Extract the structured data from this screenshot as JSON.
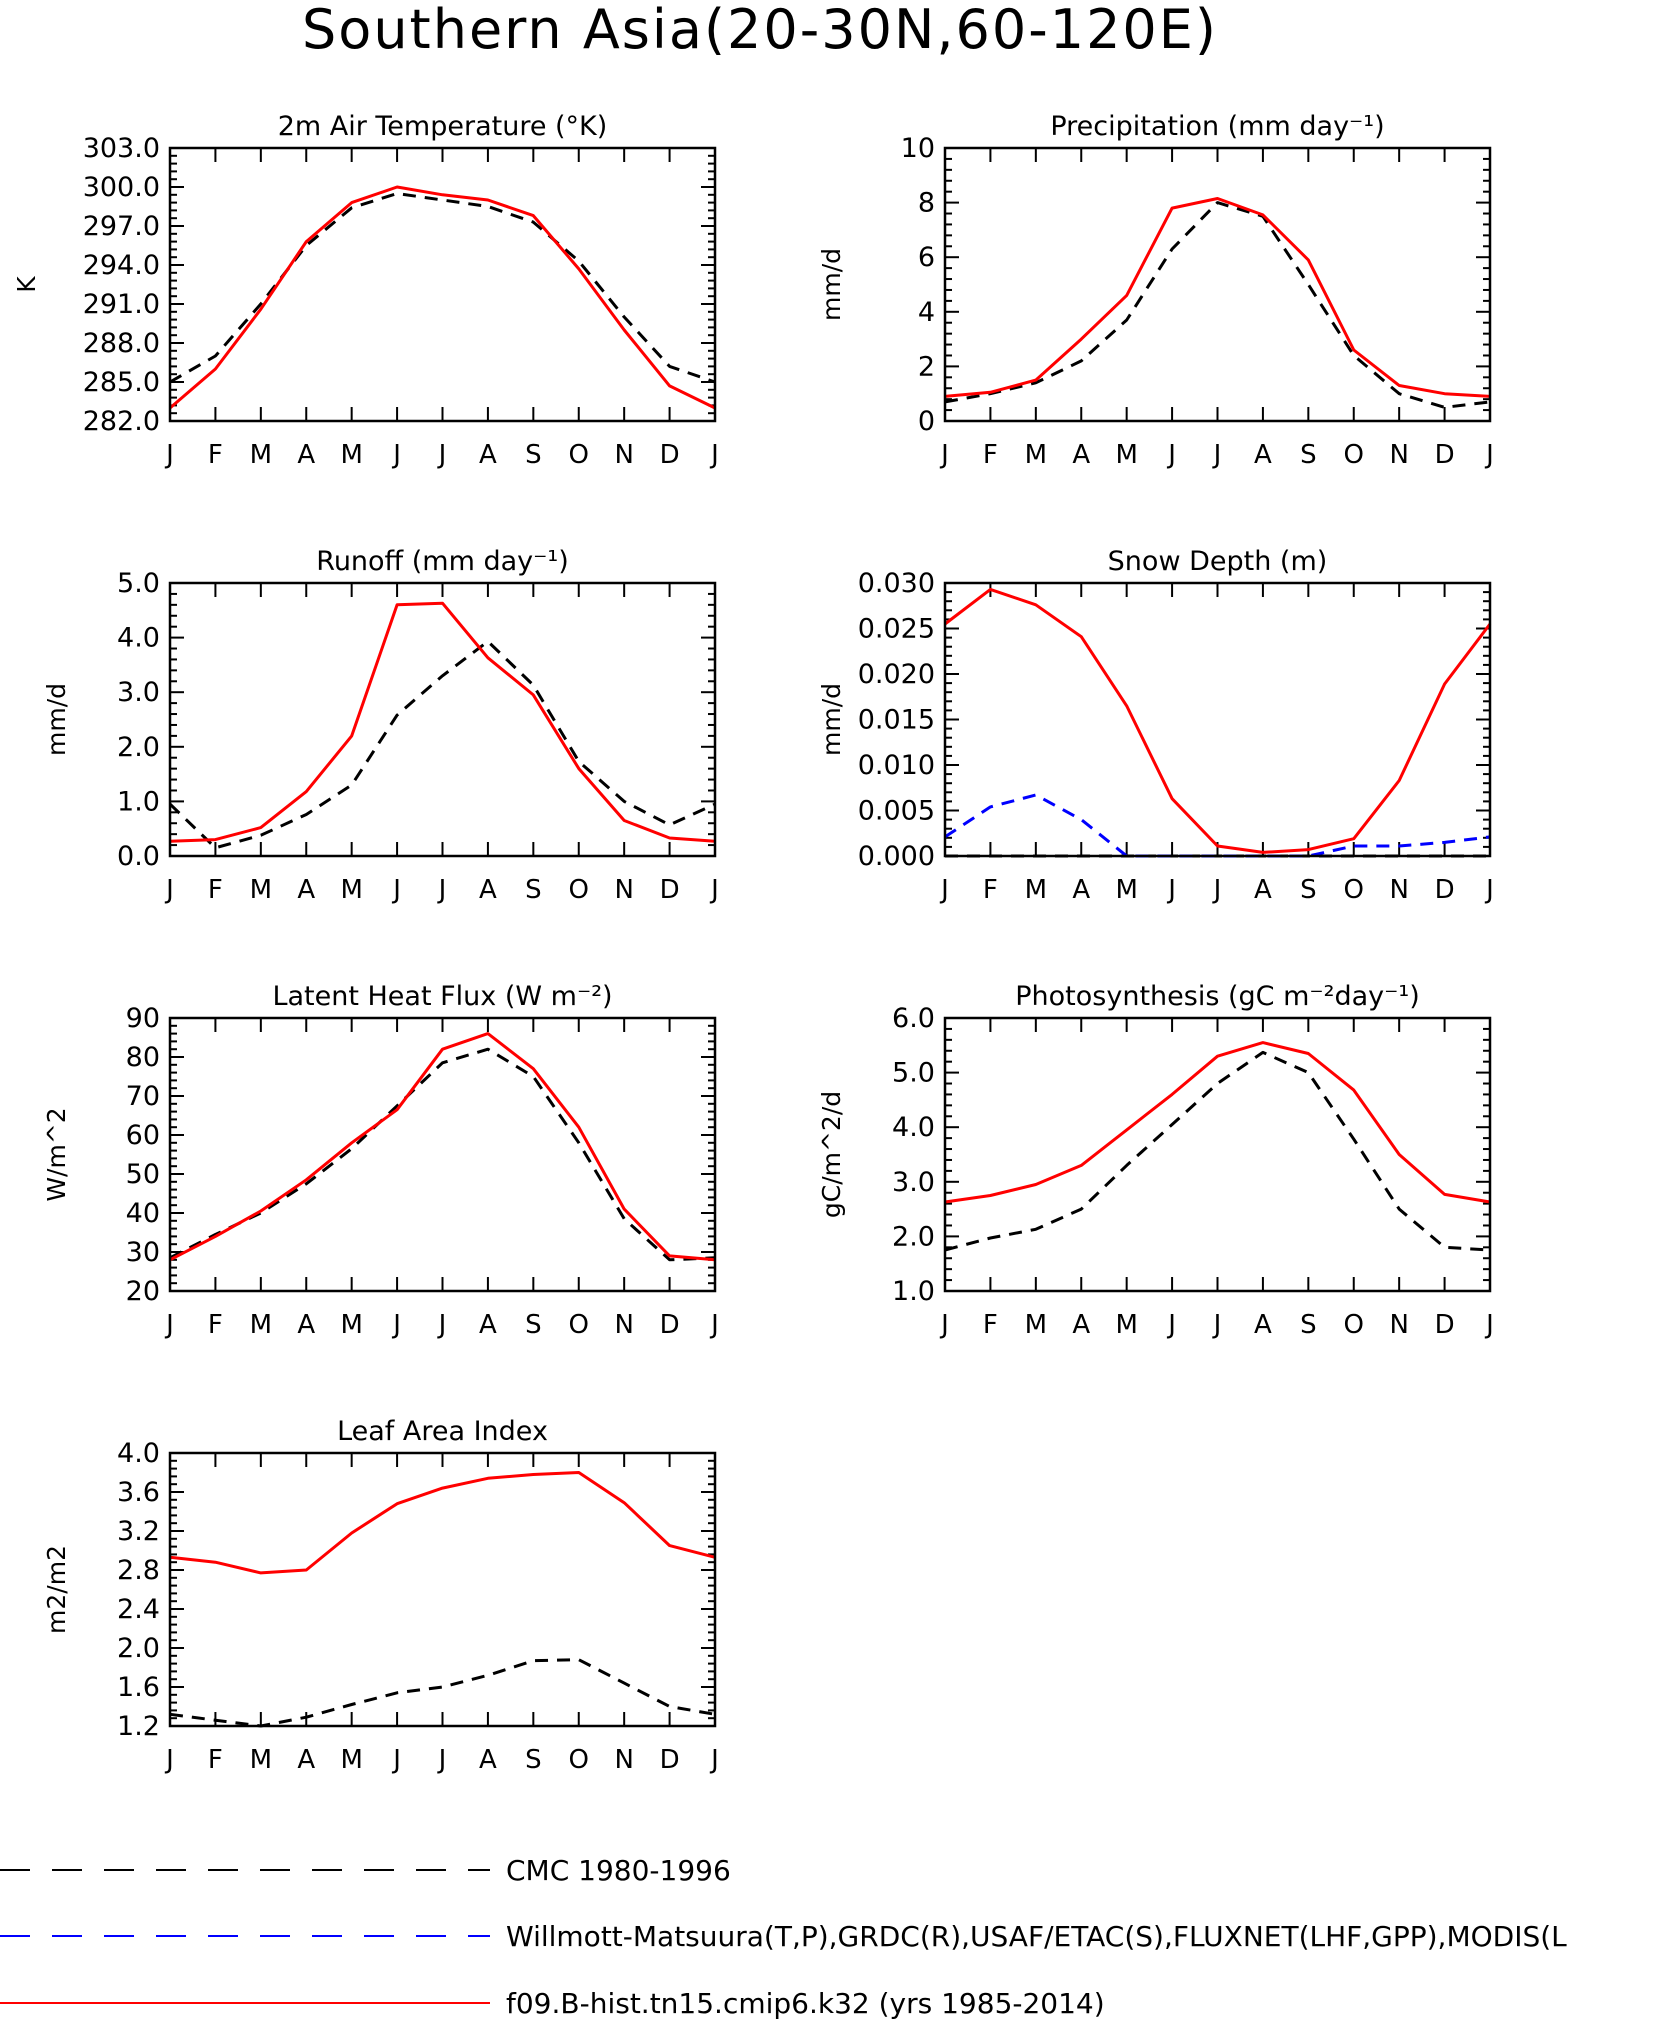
{
  "title": "Southern Asia(20-30N,60-120E)",
  "months": [
    "J",
    "F",
    "M",
    "A",
    "M",
    "J",
    "J",
    "A",
    "S",
    "O",
    "N",
    "D",
    "J"
  ],
  "colors": {
    "obs1": "#000000",
    "obs2": "#0000ff",
    "model": "#ff0000"
  },
  "legend": [
    {
      "key": "obs1",
      "label": "CMC 1980-1996",
      "dash": "dashed",
      "color": "#000000"
    },
    {
      "key": "obs2",
      "label": "Willmott-Matsuura(T,P),GRDC(R),USAF/ETAC(S),FLUXNET(LHF,GPP),MODIS(L",
      "dash": "dashed",
      "color": "#0000ff"
    },
    {
      "key": "model",
      "label": "f09.B-hist.tn15.cmip6.k32 (yrs 1985-2014)",
      "dash": "solid",
      "color": "#ff0000"
    }
  ],
  "chart_data": [
    {
      "type": "line",
      "title": "2m Air Temperature (°K)",
      "ylabel": "K",
      "ylim": [
        282.0,
        303.0
      ],
      "yticks": [
        "282.0",
        "285.0",
        "288.0",
        "291.0",
        "294.0",
        "297.0",
        "300.0",
        "303.0"
      ],
      "x": [
        "J",
        "F",
        "M",
        "A",
        "M",
        "J",
        "J",
        "A",
        "S",
        "O",
        "N",
        "D",
        "J"
      ],
      "series": [
        {
          "key": "obs1",
          "values": [
            285.0,
            287.0,
            291.0,
            295.5,
            298.4,
            299.5,
            299.0,
            298.5,
            297.3,
            294.3,
            290.0,
            286.2,
            285.0
          ]
        },
        {
          "key": "model",
          "values": [
            283.0,
            286.0,
            290.6,
            295.8,
            298.8,
            300.0,
            299.4,
            299.0,
            297.8,
            293.7,
            289.0,
            284.7,
            283.0
          ]
        }
      ]
    },
    {
      "type": "line",
      "title": "Precipitation (mm day⁻¹)",
      "ylabel": "mm/d",
      "ylim": [
        0,
        10
      ],
      "yticks": [
        "0",
        "2",
        "4",
        "6",
        "8",
        "10"
      ],
      "x": [
        "J",
        "F",
        "M",
        "A",
        "M",
        "J",
        "J",
        "A",
        "S",
        "O",
        "N",
        "D",
        "J"
      ],
      "series": [
        {
          "key": "obs1",
          "values": [
            0.7,
            1.0,
            1.4,
            2.2,
            3.7,
            6.3,
            8.0,
            7.5,
            5.0,
            2.4,
            1.0,
            0.5,
            0.7
          ]
        },
        {
          "key": "model",
          "values": [
            0.9,
            1.05,
            1.5,
            3.0,
            4.6,
            7.8,
            8.15,
            7.55,
            5.9,
            2.6,
            1.3,
            1.0,
            0.9
          ]
        }
      ]
    },
    {
      "type": "line",
      "title": "Runoff (mm day⁻¹)",
      "ylabel": "mm/d",
      "ylim": [
        0,
        5.0
      ],
      "yticks": [
        "0.0",
        "1.0",
        "2.0",
        "3.0",
        "4.0",
        "5.0"
      ],
      "x": [
        "J",
        "F",
        "M",
        "A",
        "M",
        "J",
        "J",
        "A",
        "S",
        "O",
        "N",
        "D",
        "J"
      ],
      "series": [
        {
          "key": "obs1",
          "values": [
            0.95,
            0.15,
            0.38,
            0.76,
            1.3,
            2.58,
            3.3,
            3.93,
            3.13,
            1.73,
            1.0,
            0.57,
            0.95
          ]
        },
        {
          "key": "model",
          "values": [
            0.27,
            0.3,
            0.52,
            1.18,
            2.2,
            4.6,
            4.63,
            3.63,
            2.95,
            1.6,
            0.65,
            0.33,
            0.27
          ]
        }
      ]
    },
    {
      "type": "line",
      "title": "Snow Depth (m)",
      "ylabel": "mm/d",
      "ylim": [
        0,
        0.03
      ],
      "yticks": [
        "0.000",
        "0.005",
        "0.010",
        "0.015",
        "0.020",
        "0.025",
        "0.030"
      ],
      "x": [
        "J",
        "F",
        "M",
        "A",
        "M",
        "J",
        "J",
        "A",
        "S",
        "O",
        "N",
        "D",
        "J"
      ],
      "series": [
        {
          "key": "obs1",
          "values": [
            0,
            0,
            0,
            0,
            0,
            0,
            0,
            0,
            0,
            0,
            0,
            0,
            0
          ]
        },
        {
          "key": "obs2",
          "values": [
            0.0021,
            0.0054,
            0.0067,
            0.004,
            0,
            0,
            0,
            0,
            0,
            0.0011,
            0.0011,
            0.0015,
            0.0021
          ]
        },
        {
          "key": "model",
          "values": [
            0.0255,
            0.0293,
            0.0276,
            0.0241,
            0.0165,
            0.0063,
            0.0011,
            0.0004,
            0.0007,
            0.0019,
            0.0083,
            0.0189,
            0.0255
          ]
        }
      ]
    },
    {
      "type": "line",
      "title": "Latent Heat Flux (W m⁻²)",
      "ylabel": "W/m^2",
      "ylim": [
        20,
        90
      ],
      "yticks": [
        "20",
        "30",
        "40",
        "50",
        "60",
        "70",
        "80",
        "90"
      ],
      "x": [
        "J",
        "F",
        "M",
        "A",
        "M",
        "J",
        "J",
        "A",
        "S",
        "O",
        "N",
        "D",
        "J"
      ],
      "series": [
        {
          "key": "obs1",
          "values": [
            28.5,
            34.5,
            40.0,
            47.5,
            56.5,
            67.5,
            78.5,
            82.0,
            75.0,
            58.0,
            38.5,
            28.0,
            28.5
          ]
        },
        {
          "key": "model",
          "values": [
            28.0,
            34.0,
            40.5,
            48.5,
            58.0,
            66.5,
            82.0,
            86.0,
            77.0,
            62.0,
            41.0,
            29.0,
            28.0
          ]
        }
      ]
    },
    {
      "type": "line",
      "title": "Photosynthesis (gC m⁻²day⁻¹)",
      "ylabel": "gC/m^2/d",
      "ylim": [
        1.0,
        6.0
      ],
      "yticks": [
        "1.0",
        "2.0",
        "3.0",
        "4.0",
        "5.0",
        "6.0"
      ],
      "x": [
        "J",
        "F",
        "M",
        "A",
        "M",
        "J",
        "J",
        "A",
        "S",
        "O",
        "N",
        "D",
        "J"
      ],
      "series": [
        {
          "key": "obs1",
          "values": [
            1.75,
            1.97,
            2.13,
            2.5,
            3.3,
            4.05,
            4.8,
            5.37,
            5.0,
            3.78,
            2.5,
            1.8,
            1.75
          ]
        },
        {
          "key": "model",
          "values": [
            2.63,
            2.75,
            2.95,
            3.3,
            3.95,
            4.6,
            5.3,
            5.55,
            5.35,
            4.68,
            3.5,
            2.77,
            2.63
          ]
        }
      ]
    },
    {
      "type": "line",
      "title": "Leaf Area Index",
      "ylabel": "m2/m2",
      "ylim": [
        1.2,
        4.0
      ],
      "yticks": [
        "1.2",
        "1.6",
        "2.0",
        "2.4",
        "2.8",
        "3.2",
        "3.6",
        "4.0"
      ],
      "x": [
        "J",
        "F",
        "M",
        "A",
        "M",
        "J",
        "J",
        "A",
        "S",
        "O",
        "N",
        "D",
        "J"
      ],
      "series": [
        {
          "key": "obs1",
          "values": [
            1.32,
            1.26,
            1.2,
            1.29,
            1.42,
            1.54,
            1.6,
            1.72,
            1.87,
            1.88,
            1.64,
            1.4,
            1.32
          ]
        },
        {
          "key": "model",
          "values": [
            2.93,
            2.88,
            2.77,
            2.8,
            3.18,
            3.48,
            3.64,
            3.74,
            3.78,
            3.8,
            3.49,
            3.05,
            2.93
          ]
        }
      ]
    }
  ]
}
